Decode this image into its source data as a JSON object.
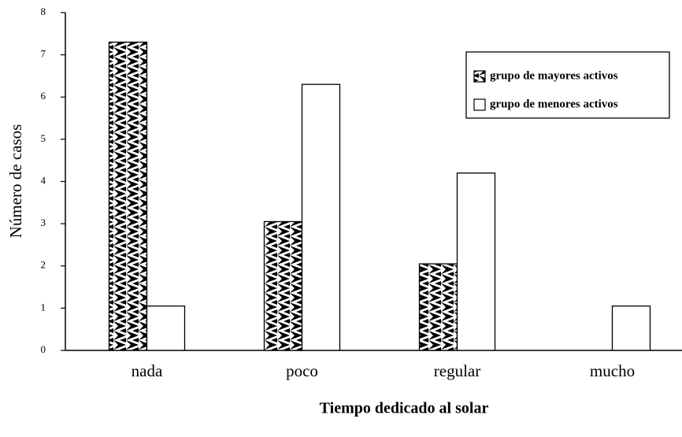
{
  "chart_data": {
    "type": "bar",
    "x_label": "Tiempo dedicado al solar",
    "y_label": "Número de casos",
    "categories": [
      "nada",
      "poco",
      "regular",
      "mucho"
    ],
    "series": [
      {
        "name": "grupo de mayores activos",
        "color": "#000000",
        "values": [
          7.3,
          3.05,
          2.05,
          0
        ]
      },
      {
        "name": "grupo de menores activos",
        "color": "#ffffff",
        "values": [
          1.05,
          6.3,
          4.2,
          1.05
        ]
      }
    ],
    "ylim": [
      0,
      8
    ],
    "yticks": [
      0,
      1,
      2,
      3,
      4,
      5,
      6,
      7,
      8
    ],
    "grid": false,
    "legend": "upper right"
  }
}
